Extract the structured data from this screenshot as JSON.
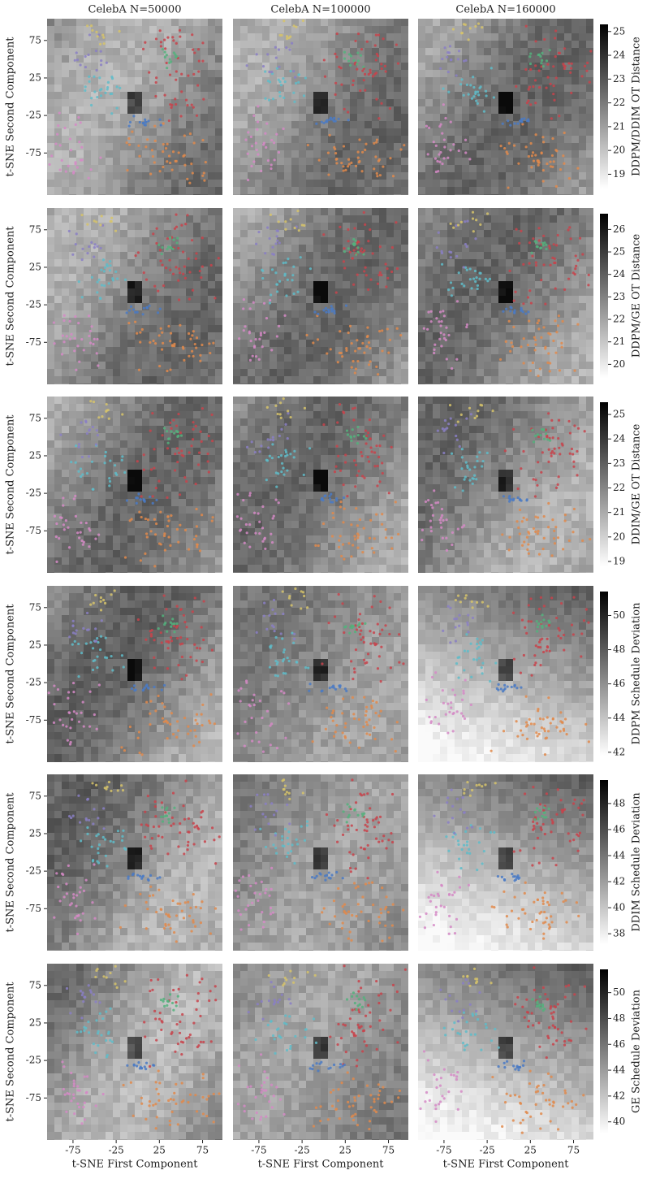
{
  "chart_data": {
    "type": "scatter-heatmap-grid",
    "columns": [
      "CelebA N=50000",
      "CelebA N=100000",
      "CelebA N=160000"
    ],
    "xlabel": "t-SNE First Component",
    "ylabel": "t-SNE Second Component",
    "xlim": [
      -105,
      98
    ],
    "ylim": [
      -131,
      104
    ],
    "xticks": [
      -75,
      -25,
      25,
      75
    ],
    "yticks": [
      75,
      25,
      -25,
      -75
    ],
    "rows": [
      {
        "colorbar_label": "DDPM/DDIM OT Distance",
        "clim": [
          18.4,
          25.3
        ],
        "cticks": [
          19,
          20,
          21,
          22,
          23,
          24,
          25
        ]
      },
      {
        "colorbar_label": "DDPM/GE OT Distance",
        "clim": [
          19.4,
          26.7
        ],
        "cticks": [
          20,
          21,
          22,
          23,
          24,
          25,
          26
        ]
      },
      {
        "colorbar_label": "DDIM/GE OT Distance",
        "clim": [
          18.8,
          25.5
        ],
        "cticks": [
          19,
          20,
          21,
          22,
          23,
          24,
          25
        ]
      },
      {
        "colorbar_label": "DDPM Schedule Deviation",
        "clim": [
          41.8,
          51.4
        ],
        "cticks": [
          42,
          44,
          46,
          48,
          50
        ]
      },
      {
        "colorbar_label": "DDIM Schedule Deviation",
        "clim": [
          37.2,
          49.8
        ],
        "cticks": [
          38,
          40,
          42,
          44,
          46,
          48
        ]
      },
      {
        "colorbar_label": "GE Schedule Deviation",
        "clim": [
          39.1,
          51.8
        ],
        "cticks": [
          40,
          42,
          44,
          46,
          48,
          50
        ]
      }
    ]
  }
}
